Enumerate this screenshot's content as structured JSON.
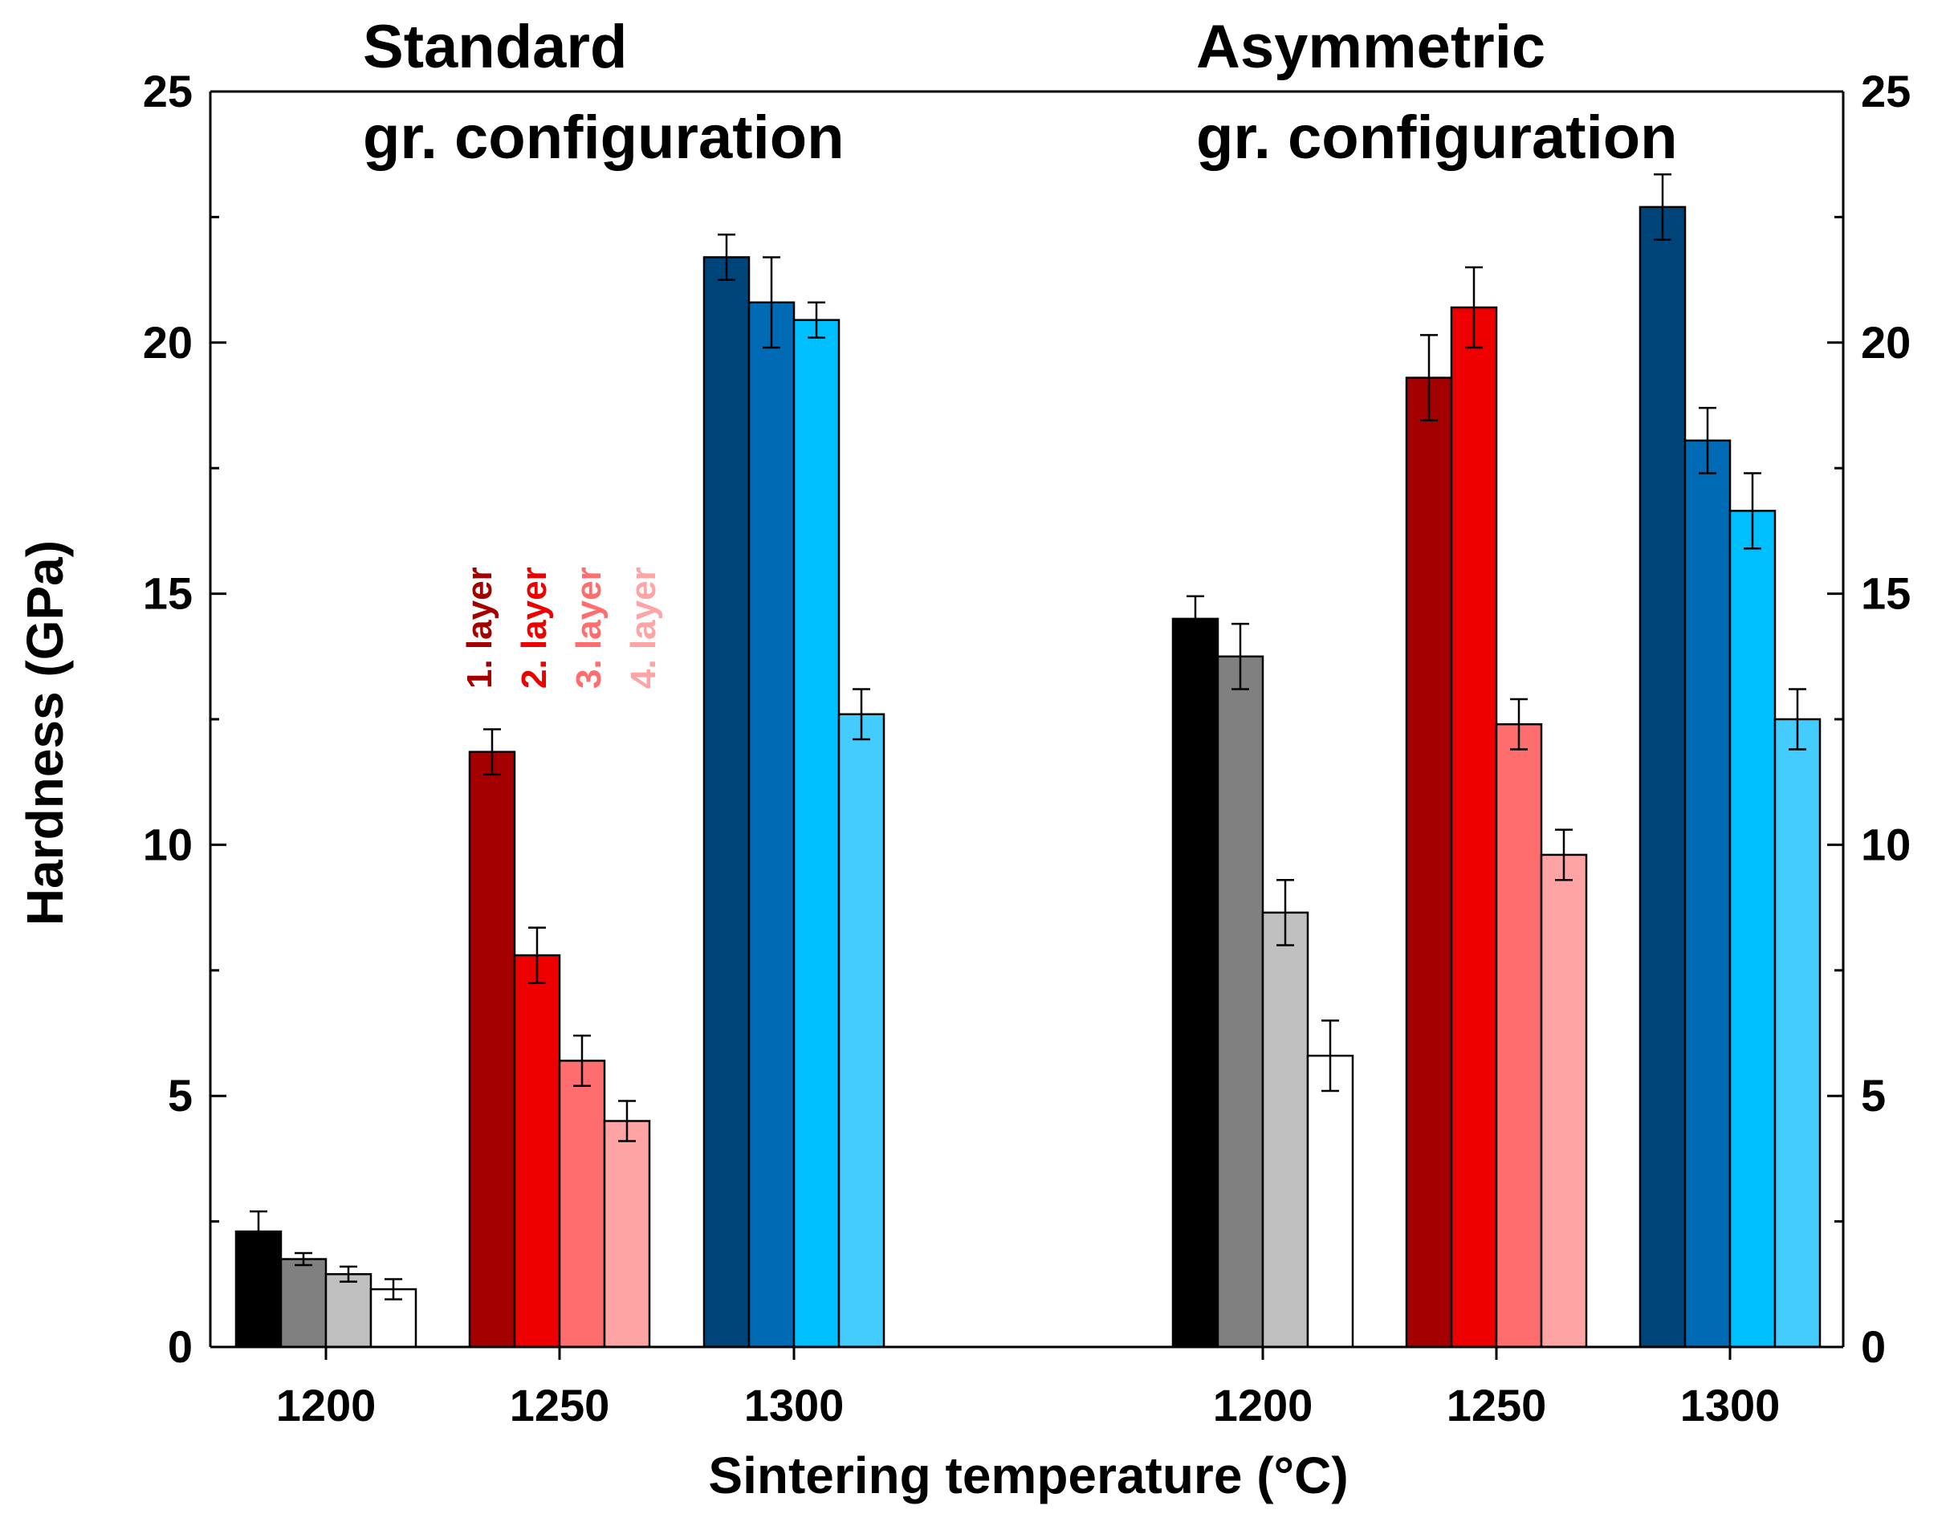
{
  "chart_data": {
    "type": "bar",
    "ylabel": "Hardness (GPa)",
    "xlabel": "Sintering temperature (°C)",
    "ylim": [
      0,
      25
    ],
    "yticks": [
      0,
      5,
      10,
      15,
      20,
      25
    ],
    "groups": [
      {
        "title_line1": "Standard",
        "title_line2": "gr. configuration",
        "categories": [
          {
            "label": "1200",
            "palette": "gray",
            "values": [
              2.3,
              1.75,
              1.45,
              1.15
            ],
            "errors": [
              0.4,
              0.12,
              0.15,
              0.2
            ]
          },
          {
            "label": "1250",
            "palette": "red",
            "values": [
              11.85,
              7.8,
              5.7,
              4.5
            ],
            "errors": [
              0.45,
              0.55,
              0.5,
              0.4
            ]
          },
          {
            "label": "1300",
            "palette": "blue",
            "values": [
              21.7,
              20.8,
              20.45,
              12.6
            ],
            "errors": [
              0.45,
              0.9,
              0.35,
              0.5
            ]
          }
        ]
      },
      {
        "title_line1": "Asymmetric",
        "title_line2": "gr. configuration",
        "categories": [
          {
            "label": "1200",
            "palette": "gray",
            "values": [
              14.5,
              13.75,
              8.65,
              5.8
            ],
            "errors": [
              0.45,
              0.65,
              0.65,
              0.7
            ]
          },
          {
            "label": "1250",
            "palette": "red",
            "values": [
              19.3,
              20.7,
              12.4,
              9.8
            ],
            "errors": [
              0.85,
              0.8,
              0.5,
              0.5
            ]
          },
          {
            "label": "1300",
            "palette": "blue",
            "values": [
              22.7,
              18.05,
              16.65,
              12.5
            ],
            "errors": [
              0.65,
              0.65,
              0.75,
              0.6
            ]
          }
        ]
      }
    ],
    "palettes": {
      "gray": [
        "#000000",
        "#808080",
        "#c0c0c0",
        "#ffffff"
      ],
      "red": [
        "#a50000",
        "#ee0000",
        "#ff6e6e",
        "#ffa4a4"
      ],
      "blue": [
        "#00457a",
        "#006ab4",
        "#00bfff",
        "#44ccff"
      ]
    },
    "layer_labels": [
      {
        "text": "1. layer",
        "color": "#a50000"
      },
      {
        "text": "2. layer",
        "color": "#ee0000"
      },
      {
        "text": "3. layer",
        "color": "#ff6e6e"
      },
      {
        "text": "4. layer",
        "color": "#ffa4a4"
      }
    ]
  }
}
